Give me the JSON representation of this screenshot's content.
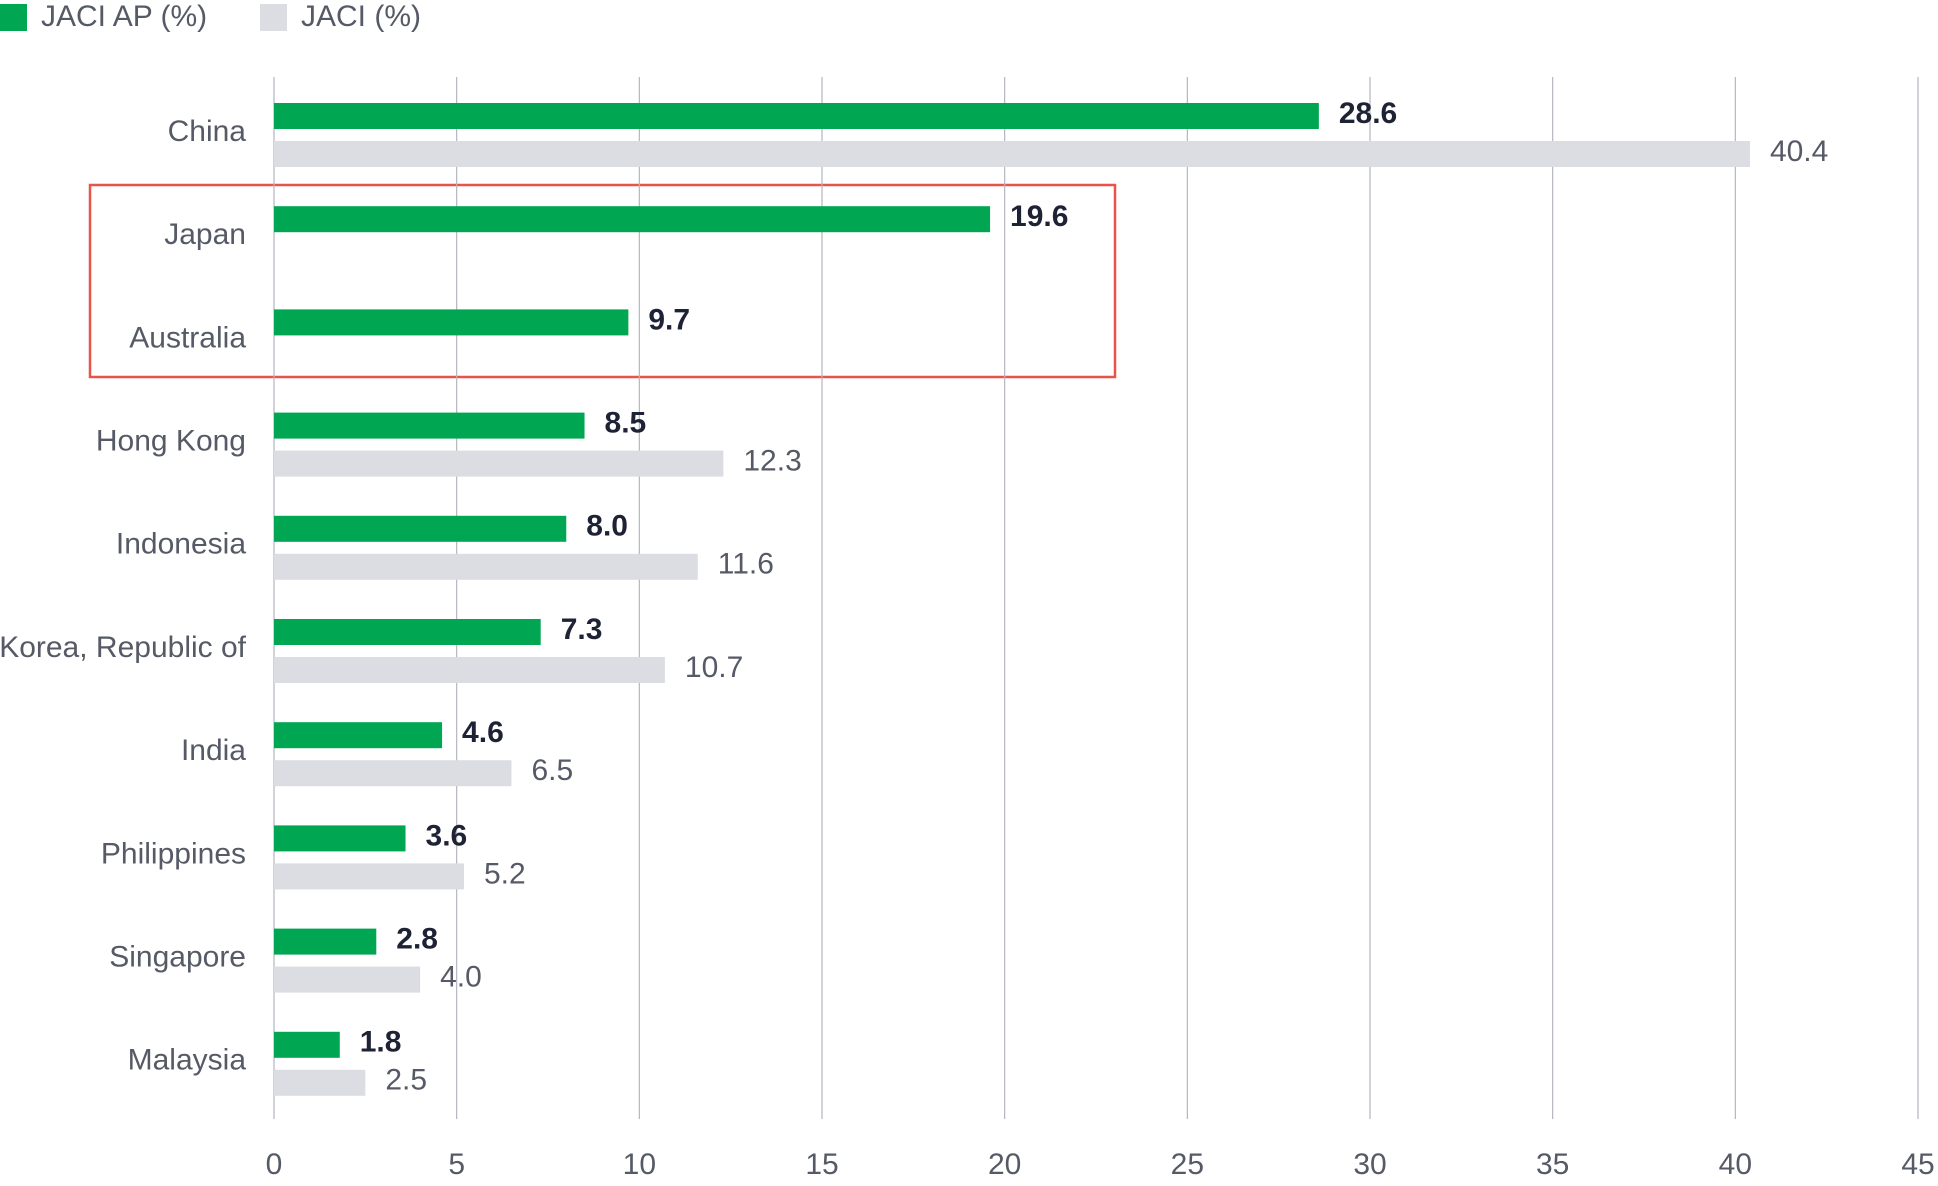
{
  "chart_data": {
    "type": "bar",
    "orientation": "horizontal",
    "categories": [
      "China",
      "Japan",
      "Australia",
      "Hong Kong",
      "Indonesia",
      "Korea, Republic of",
      "India",
      "Philippines",
      "Singapore",
      "Malaysia"
    ],
    "series": [
      {
        "name": "JACI AP (%)",
        "color": "#00a651",
        "values": [
          28.6,
          19.6,
          9.7,
          8.5,
          8.0,
          7.3,
          4.6,
          3.6,
          2.8,
          1.8
        ],
        "value_labels": [
          "28.6",
          "19.6",
          "9.7",
          "8.5",
          "8.0",
          "7.3",
          "4.6",
          "3.6",
          "2.8",
          "1.8"
        ]
      },
      {
        "name": "JACI (%)",
        "color": "#dcdde2",
        "values": [
          40.4,
          null,
          null,
          12.3,
          11.6,
          10.7,
          6.5,
          5.2,
          4.0,
          2.5
        ],
        "value_labels": [
          "40.4",
          null,
          null,
          "12.3",
          "11.6",
          "10.7",
          "6.5",
          "5.2",
          "4.0",
          "2.5"
        ]
      }
    ],
    "xlim": [
      0,
      45
    ],
    "xticks": [
      0,
      5,
      10,
      15,
      20,
      25,
      30,
      35,
      40,
      45
    ],
    "grid": true,
    "legend": "top-left"
  }
}
